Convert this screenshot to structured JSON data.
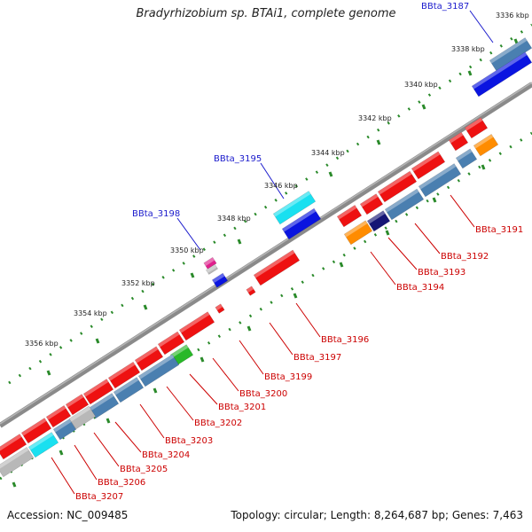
{
  "title": "Bradyrhizobium sp. BTAi1, complete genome",
  "footer": {
    "accession": "Accession: NC_009485",
    "summary": "Topology: circular; Length: 8,264,687 bp; Genes: 7,463"
  },
  "ticks": [
    "3336 kbp",
    "3338 kbp",
    "3340 kbp",
    "3342 kbp",
    "3344 kbp",
    "3346 kbp",
    "3348 kbp",
    "3350 kbp",
    "3352 kbp",
    "3354 kbp",
    "3356 kbp"
  ],
  "labels_blue": [
    "BBta_3187",
    "BBta_3195",
    "BBta_3198"
  ],
  "labels_red": [
    "BBta_3191",
    "BBta_3192",
    "BBta_3193",
    "BBta_3194",
    "BBta_3196",
    "BBta_3197",
    "BBta_3199",
    "BBta_3200",
    "BBta_3201",
    "BBta_3202",
    "BBta_3203",
    "BBta_3204",
    "BBta_3205",
    "BBta_3206",
    "BBta_3207"
  ],
  "colors": {
    "backbone": "#8a8a8a",
    "gene_red": "#ee1111",
    "gene_steel": "#4a7fb0",
    "gene_blue": "#0a14e0",
    "gene_cyan": "#19e0f0",
    "gene_gray": "#b8b8b8",
    "gene_navy": "#151575",
    "gene_orange": "#ff8c00",
    "gene_green": "#28b828",
    "gene_magenta": "#e0208c",
    "tick_green": "#2a8a2a",
    "label_blue": "#1a1acc",
    "label_red": "#cc0000"
  }
}
